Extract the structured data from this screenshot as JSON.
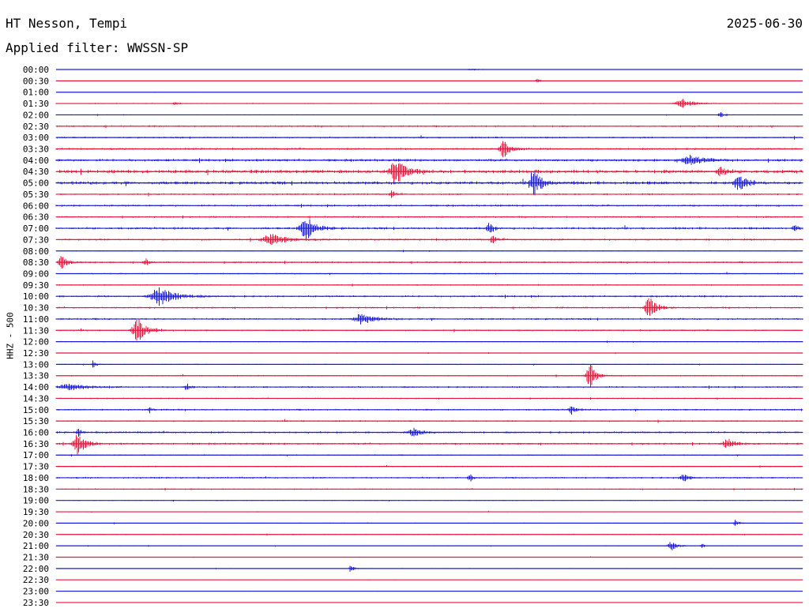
{
  "header": {
    "title": "HT Nesson, Tempi",
    "date": "2025-06-30",
    "filter": "Applied filter: WWSSN-SP"
  },
  "colors": {
    "blue": "#1a1adc",
    "red": "#e8143c"
  },
  "chart_data": {
    "type": "line",
    "ylabel": "HHZ - 500",
    "row_labels": [
      "00:00",
      "00:30",
      "01:00",
      "01:30",
      "02:00",
      "02:30",
      "03:00",
      "03:30",
      "04:00",
      "04:30",
      "05:00",
      "05:30",
      "06:00",
      "06:30",
      "07:00",
      "07:30",
      "08:00",
      "08:30",
      "09:00",
      "09:30",
      "10:00",
      "10:30",
      "11:00",
      "11:30",
      "12:00",
      "12:30",
      "13:00",
      "13:30",
      "14:00",
      "14:30",
      "15:00",
      "15:30",
      "16:00",
      "16:30",
      "17:00",
      "17:30",
      "18:00",
      "18:30",
      "19:00",
      "19:30",
      "20:00",
      "20:30",
      "21:00",
      "21:30",
      "22:00",
      "22:30",
      "23:00",
      "23:30"
    ],
    "row_colors": [
      "blue",
      "red"
    ],
    "noise_levels": [
      0.1,
      0.1,
      0.15,
      0.5,
      0.4,
      0.8,
      0.8,
      0.9,
      1.2,
      1.6,
      1.5,
      0.8,
      0.9,
      0.8,
      1.1,
      0.9,
      0.5,
      0.8,
      0.6,
      0.6,
      0.9,
      0.8,
      0.9,
      0.7,
      0.5,
      0.4,
      0.5,
      0.6,
      0.8,
      0.6,
      0.8,
      0.7,
      0.9,
      0.9,
      0.6,
      0.5,
      0.8,
      0.6,
      0.5,
      0.4,
      0.4,
      0.5,
      0.4,
      0.3,
      0.3,
      0.2,
      0.2,
      0.1
    ],
    "events": [
      {
        "row": 0,
        "t": 0.56,
        "amp": 1,
        "dur": 0.02
      },
      {
        "row": 1,
        "t": 0.645,
        "amp": 3,
        "dur": 0.004
      },
      {
        "row": 3,
        "t": 0.16,
        "amp": 2,
        "dur": 0.005
      },
      {
        "row": 3,
        "t": 0.84,
        "amp": 6,
        "dur": 0.015
      },
      {
        "row": 4,
        "t": 0.89,
        "amp": 4,
        "dur": 0.005
      },
      {
        "row": 7,
        "t": 0.6,
        "amp": 10,
        "dur": 0.01
      },
      {
        "row": 8,
        "t": 0.85,
        "amp": 6,
        "dur": 0.02
      },
      {
        "row": 9,
        "t": 0.455,
        "amp": 18,
        "dur": 0.012
      },
      {
        "row": 9,
        "t": 0.89,
        "amp": 6,
        "dur": 0.008
      },
      {
        "row": 10,
        "t": 0.64,
        "amp": 18,
        "dur": 0.01
      },
      {
        "row": 10,
        "t": 0.915,
        "amp": 9,
        "dur": 0.012
      },
      {
        "row": 11,
        "t": 0.45,
        "amp": 5,
        "dur": 0.004
      },
      {
        "row": 14,
        "t": 0.335,
        "amp": 16,
        "dur": 0.012
      },
      {
        "row": 14,
        "t": 0.58,
        "amp": 8,
        "dur": 0.006
      },
      {
        "row": 14,
        "t": 0.99,
        "amp": 5,
        "dur": 0.005
      },
      {
        "row": 15,
        "t": 0.29,
        "amp": 7,
        "dur": 0.02
      },
      {
        "row": 15,
        "t": 0.585,
        "amp": 5,
        "dur": 0.005
      },
      {
        "row": 17,
        "t": 0.008,
        "amp": 9,
        "dur": 0.008
      },
      {
        "row": 17,
        "t": 0.12,
        "amp": 5,
        "dur": 0.005
      },
      {
        "row": 20,
        "t": 0.14,
        "amp": 12,
        "dur": 0.02
      },
      {
        "row": 21,
        "t": 0.795,
        "amp": 13,
        "dur": 0.01
      },
      {
        "row": 22,
        "t": 0.41,
        "amp": 7,
        "dur": 0.015
      },
      {
        "row": 23,
        "t": 0.11,
        "amp": 15,
        "dur": 0.012
      },
      {
        "row": 26,
        "t": 0.05,
        "amp": 5,
        "dur": 0.004
      },
      {
        "row": 27,
        "t": 0.715,
        "amp": 18,
        "dur": 0.008
      },
      {
        "row": 28,
        "t": 0.02,
        "amp": 4,
        "dur": 0.025
      },
      {
        "row": 28,
        "t": 0.175,
        "amp": 5,
        "dur": 0.005
      },
      {
        "row": 30,
        "t": 0.125,
        "amp": 4,
        "dur": 0.004
      },
      {
        "row": 30,
        "t": 0.69,
        "amp": 6,
        "dur": 0.006
      },
      {
        "row": 32,
        "t": 0.03,
        "amp": 5,
        "dur": 0.005
      },
      {
        "row": 32,
        "t": 0.48,
        "amp": 5,
        "dur": 0.012
      },
      {
        "row": 33,
        "t": 0.03,
        "amp": 14,
        "dur": 0.01
      },
      {
        "row": 33,
        "t": 0.9,
        "amp": 6,
        "dur": 0.01
      },
      {
        "row": 36,
        "t": 0.555,
        "amp": 4,
        "dur": 0.005
      },
      {
        "row": 36,
        "t": 0.84,
        "amp": 5,
        "dur": 0.008
      },
      {
        "row": 40,
        "t": 0.91,
        "amp": 4,
        "dur": 0.005
      },
      {
        "row": 42,
        "t": 0.825,
        "amp": 7,
        "dur": 0.008
      },
      {
        "row": 42,
        "t": 0.865,
        "amp": 3,
        "dur": 0.004
      },
      {
        "row": 44,
        "t": 0.395,
        "amp": 6,
        "dur": 0.004
      }
    ]
  }
}
